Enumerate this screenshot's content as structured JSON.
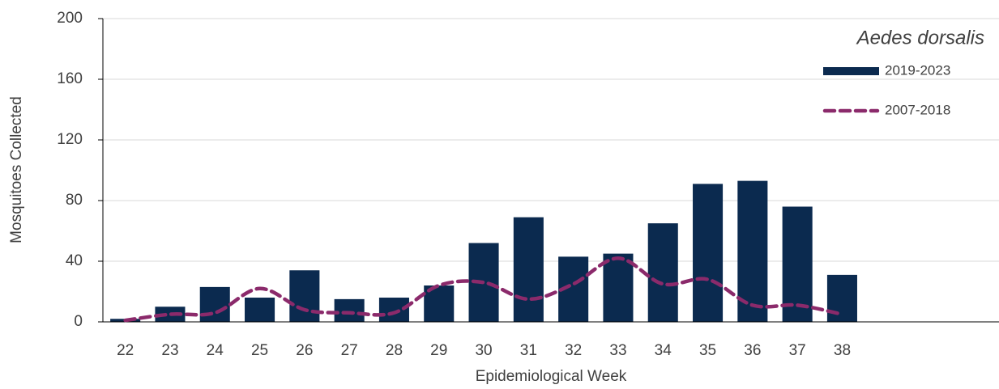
{
  "chart_data": {
    "type": "bar-line",
    "x_label": "Epidemiological Week",
    "y_label": "Mosquitoes Collected",
    "legend_title": "Aedes dorsalis",
    "categories": [
      "22",
      "23",
      "24",
      "25",
      "26",
      "27",
      "28",
      "29",
      "30",
      "31",
      "32",
      "33",
      "34",
      "35",
      "36",
      "37",
      "38",
      null,
      null,
      null
    ],
    "series": [
      {
        "name": "2019-2023",
        "type": "bar",
        "color": "#0b2a4f",
        "values": [
          2,
          10,
          23,
          16,
          34,
          15,
          16,
          24,
          52,
          69,
          43,
          45,
          65,
          91,
          93,
          76,
          31,
          null,
          null,
          null
        ]
      },
      {
        "name": "2007-2018",
        "type": "line",
        "color": "#8b2a6b",
        "dashed": true,
        "values": [
          1,
          5,
          6,
          22,
          8,
          6,
          6,
          24,
          26,
          15,
          25,
          42,
          25,
          28,
          11,
          11,
          5,
          null,
          null,
          null
        ]
      }
    ],
    "ylim": [
      0,
      200
    ],
    "yticks": [
      0,
      40,
      80,
      120,
      160,
      200
    ],
    "grid": true,
    "legend": "top-right"
  }
}
